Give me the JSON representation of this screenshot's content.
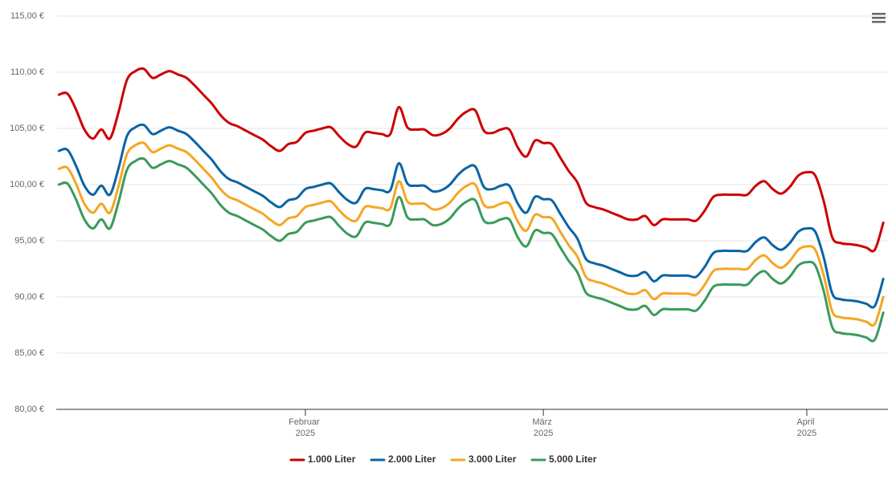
{
  "chart_data": {
    "type": "line",
    "categories": [
      null,
      null,
      null,
      null,
      null,
      null,
      null,
      null,
      null,
      null,
      null,
      null,
      null,
      null,
      null,
      null,
      null,
      null,
      null,
      null,
      null,
      null,
      null,
      null,
      null,
      null,
      null,
      null,
      null,
      "Februar 2025",
      null,
      null,
      null,
      null,
      null,
      null,
      null,
      null,
      null,
      null,
      null,
      null,
      null,
      null,
      null,
      null,
      null,
      null,
      null,
      null,
      null,
      null,
      null,
      null,
      null,
      null,
      null,
      "März 2025",
      null,
      null,
      null,
      null,
      null,
      null,
      null,
      null,
      null,
      null,
      null,
      null,
      null,
      null,
      null,
      null,
      null,
      null,
      null,
      null,
      null,
      null,
      null,
      null,
      null,
      null,
      null,
      null,
      null,
      null,
      "April 2025",
      null,
      null,
      null,
      null,
      null,
      null,
      null,
      null,
      null
    ],
    "series": [
      {
        "name": "1.000 Liter",
        "color": "#cc0000",
        "values": [
          108.0,
          108.1,
          106.7,
          104.9,
          104.1,
          104.9,
          104.1,
          106.4,
          109.3,
          110.1,
          110.3,
          109.5,
          109.8,
          110.1,
          109.8,
          109.5,
          108.8,
          108.0,
          107.2,
          106.2,
          105.5,
          105.2,
          104.8,
          104.4,
          104.0,
          103.4,
          103.0,
          103.6,
          103.8,
          104.6,
          104.8,
          105.0,
          105.1,
          104.3,
          103.6,
          103.4,
          104.6,
          104.6,
          104.5,
          104.5,
          106.9,
          105.1,
          104.9,
          104.9,
          104.4,
          104.5,
          105.0,
          105.9,
          106.5,
          106.6,
          104.8,
          104.6,
          104.9,
          104.9,
          103.3,
          102.5,
          103.9,
          103.7,
          103.6,
          102.4,
          101.2,
          100.2,
          98.4,
          98.0,
          97.8,
          97.5,
          97.2,
          96.9,
          96.9,
          97.2,
          96.4,
          96.9,
          96.9,
          96.9,
          96.9,
          96.8,
          97.7,
          98.9,
          99.1,
          99.1,
          99.1,
          99.1,
          99.9,
          100.3,
          99.6,
          99.2,
          99.8,
          100.8,
          101.1,
          100.8,
          98.5,
          95.3,
          94.8,
          94.7,
          94.6,
          94.4,
          94.2,
          96.6
        ]
      },
      {
        "name": "2.000 Liter",
        "color": "#0a64a4",
        "values": [
          103.0,
          103.1,
          101.7,
          99.9,
          99.1,
          99.9,
          99.1,
          101.4,
          104.3,
          105.1,
          105.3,
          104.5,
          104.8,
          105.1,
          104.8,
          104.5,
          103.8,
          103.0,
          102.2,
          101.2,
          100.5,
          100.2,
          99.8,
          99.4,
          99.0,
          98.4,
          98.0,
          98.6,
          98.8,
          99.6,
          99.8,
          100.0,
          100.1,
          99.3,
          98.6,
          98.4,
          99.6,
          99.6,
          99.5,
          99.5,
          101.9,
          100.1,
          99.9,
          99.9,
          99.4,
          99.5,
          100.0,
          100.9,
          101.5,
          101.6,
          99.8,
          99.6,
          99.9,
          99.9,
          98.3,
          97.5,
          98.9,
          98.7,
          98.6,
          97.4,
          96.2,
          95.2,
          93.4,
          93.0,
          92.8,
          92.5,
          92.2,
          91.9,
          91.9,
          92.2,
          91.4,
          91.9,
          91.9,
          91.9,
          91.9,
          91.8,
          92.7,
          93.9,
          94.1,
          94.1,
          94.1,
          94.1,
          94.9,
          95.3,
          94.6,
          94.2,
          94.8,
          95.8,
          96.1,
          95.8,
          93.5,
          90.3,
          89.8,
          89.7,
          89.6,
          89.4,
          89.2,
          91.6
        ]
      },
      {
        "name": "3.000 Liter",
        "color": "#f5a623",
        "values": [
          101.4,
          101.5,
          100.1,
          98.3,
          97.5,
          98.3,
          97.5,
          99.8,
          102.7,
          103.5,
          103.7,
          102.9,
          103.2,
          103.5,
          103.2,
          102.9,
          102.2,
          101.4,
          100.6,
          99.6,
          98.9,
          98.6,
          98.2,
          97.8,
          97.4,
          96.8,
          96.4,
          97.0,
          97.2,
          98.0,
          98.2,
          98.4,
          98.5,
          97.7,
          97.0,
          96.8,
          98.0,
          98.0,
          97.9,
          97.9,
          100.3,
          98.5,
          98.3,
          98.3,
          97.8,
          97.9,
          98.4,
          99.3,
          99.9,
          100.0,
          98.2,
          98.0,
          98.3,
          98.3,
          96.7,
          95.9,
          97.3,
          97.1,
          97.0,
          95.8,
          94.6,
          93.6,
          91.8,
          91.4,
          91.2,
          90.9,
          90.6,
          90.3,
          90.3,
          90.6,
          89.8,
          90.3,
          90.3,
          90.3,
          90.3,
          90.2,
          91.1,
          92.3,
          92.5,
          92.5,
          92.5,
          92.5,
          93.3,
          93.7,
          93.0,
          92.6,
          93.2,
          94.2,
          94.5,
          94.2,
          91.9,
          88.7,
          88.2,
          88.1,
          88.0,
          87.8,
          87.6,
          90.0
        ]
      },
      {
        "name": "5.000 Liter",
        "color": "#3a9a5b",
        "values": [
          100.0,
          100.1,
          98.7,
          96.9,
          96.1,
          96.9,
          96.1,
          98.4,
          101.3,
          102.1,
          102.3,
          101.5,
          101.8,
          102.1,
          101.8,
          101.5,
          100.8,
          100.0,
          99.2,
          98.2,
          97.5,
          97.2,
          96.8,
          96.4,
          96.0,
          95.4,
          95.0,
          95.6,
          95.8,
          96.6,
          96.8,
          97.0,
          97.1,
          96.3,
          95.6,
          95.4,
          96.6,
          96.6,
          96.5,
          96.5,
          98.9,
          97.1,
          96.9,
          96.9,
          96.4,
          96.5,
          97.0,
          97.9,
          98.5,
          98.6,
          96.8,
          96.6,
          96.9,
          96.9,
          95.3,
          94.5,
          95.9,
          95.7,
          95.6,
          94.4,
          93.2,
          92.2,
          90.4,
          90.0,
          89.8,
          89.5,
          89.2,
          88.9,
          88.9,
          89.2,
          88.4,
          88.9,
          88.9,
          88.9,
          88.9,
          88.8,
          89.7,
          90.9,
          91.1,
          91.1,
          91.1,
          91.1,
          91.9,
          92.3,
          91.6,
          91.2,
          91.8,
          92.8,
          93.1,
          92.8,
          90.5,
          87.3,
          86.8,
          86.7,
          86.6,
          86.4,
          86.2,
          88.6
        ]
      }
    ],
    "ylim": [
      80,
      115
    ],
    "yticks": [
      {
        "value": 80,
        "label": "80,00 €"
      },
      {
        "value": 85,
        "label": "85,00 €"
      },
      {
        "value": 90,
        "label": "90,00 €"
      },
      {
        "value": 95,
        "label": "95,00 €"
      },
      {
        "value": 100,
        "label": "100,00 €"
      },
      {
        "value": 105,
        "label": "105,00 €"
      },
      {
        "value": 110,
        "label": "110,00 €"
      },
      {
        "value": 115,
        "label": "115,00 €"
      }
    ],
    "grid": true
  }
}
